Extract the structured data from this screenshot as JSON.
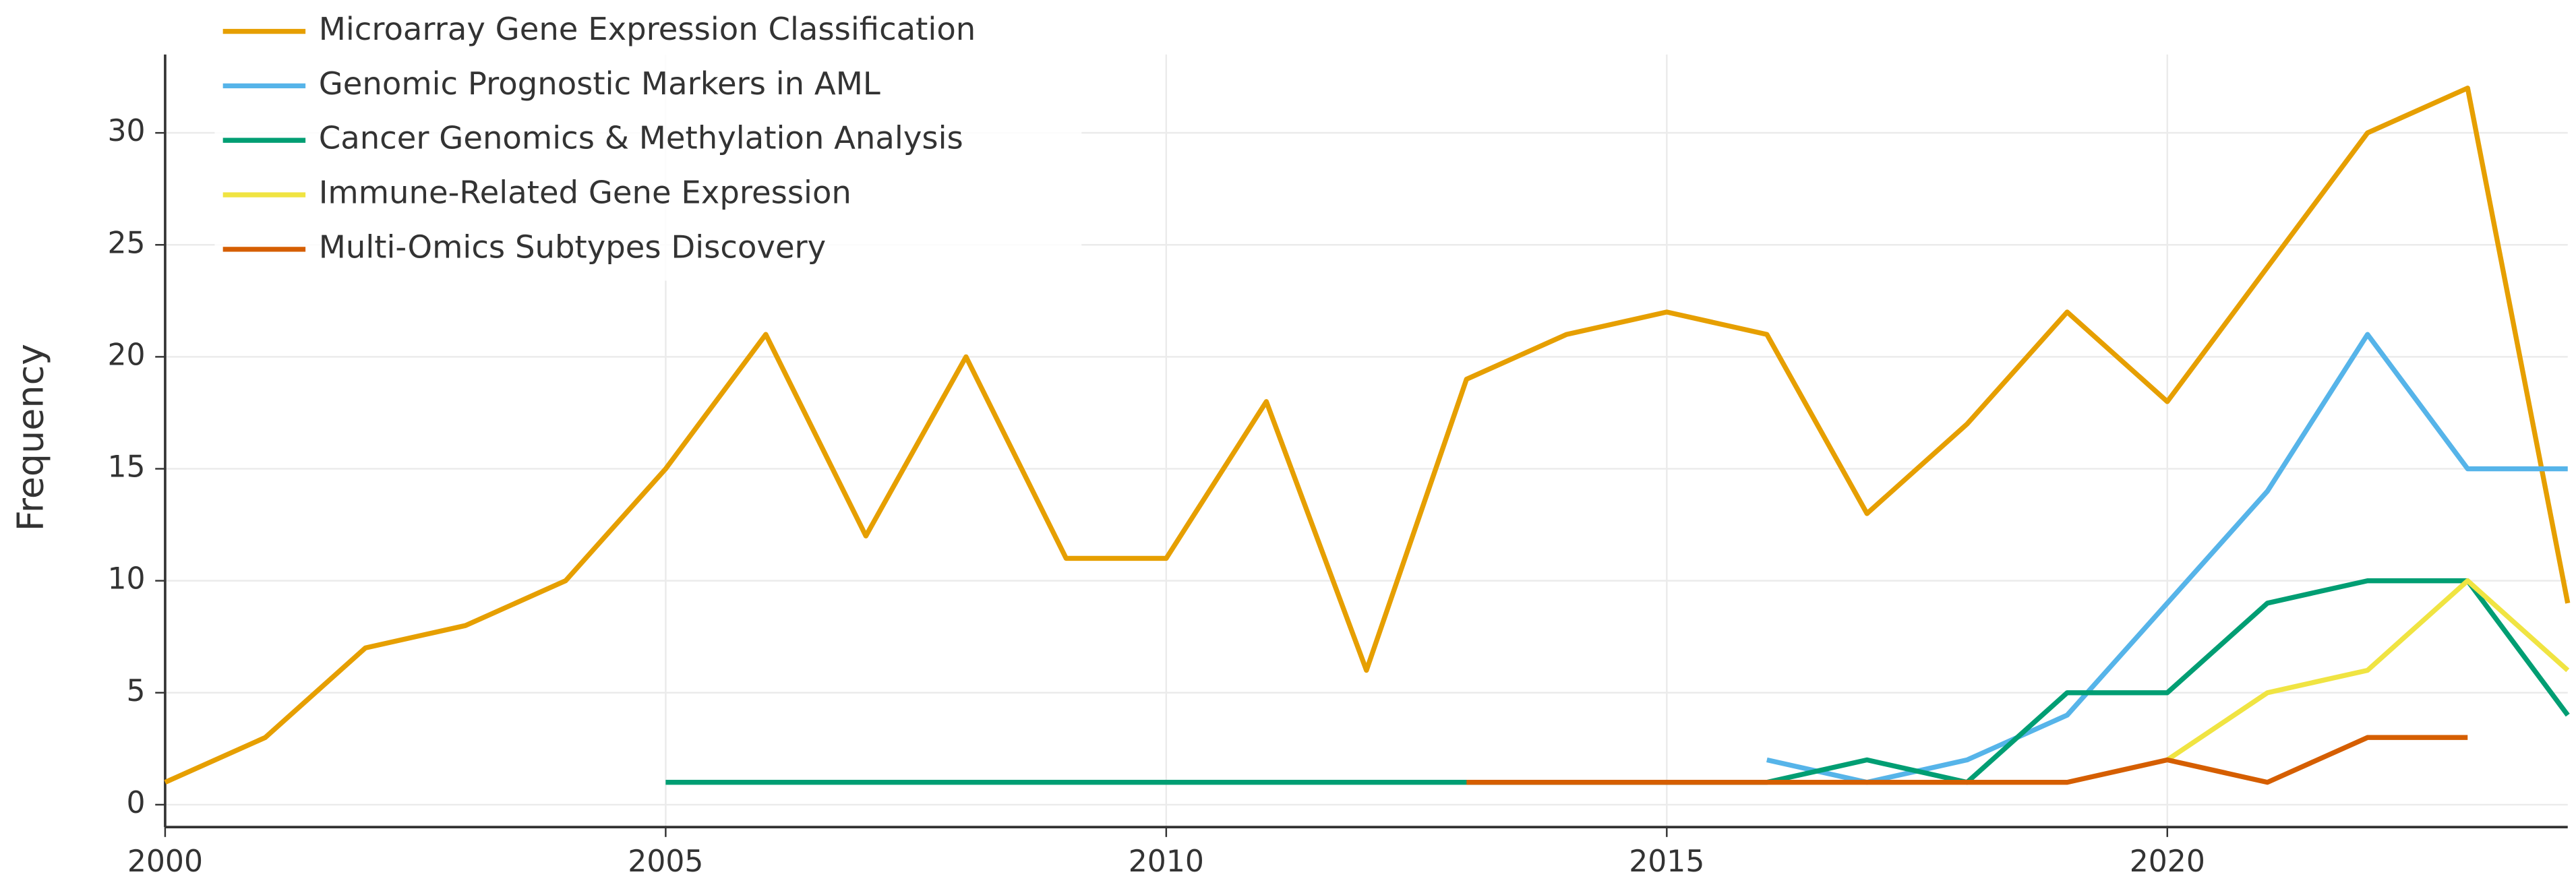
{
  "chart_data": {
    "type": "line",
    "y_label": "Frequency",
    "x": [
      2000,
      2001,
      2002,
      2003,
      2004,
      2005,
      2006,
      2007,
      2008,
      2009,
      2010,
      2011,
      2012,
      2013,
      2014,
      2015,
      2016,
      2017,
      2018,
      2019,
      2020,
      2021,
      2022,
      2023,
      2024
    ],
    "series": [
      {
        "name": "Microarray Gene Expression Classification",
        "color": "#E69F00",
        "values": [
          1,
          3,
          7,
          8,
          10,
          15,
          21,
          12,
          20,
          11,
          11,
          18,
          6,
          19,
          21,
          22,
          21,
          13,
          17,
          22,
          18,
          24,
          30,
          32,
          9
        ]
      },
      {
        "name": "Genomic Prognostic Markers in AML",
        "color": "#56B4E9",
        "values": [
          null,
          null,
          null,
          null,
          null,
          null,
          null,
          null,
          null,
          null,
          null,
          null,
          null,
          null,
          null,
          null,
          2,
          1,
          2,
          4,
          9,
          14,
          21,
          15,
          15
        ]
      },
      {
        "name": "Cancer Genomics & Methylation Analysis",
        "color": "#009E73",
        "values": [
          null,
          null,
          null,
          null,
          null,
          1,
          1,
          1,
          1,
          1,
          1,
          1,
          1,
          1,
          1,
          1,
          1,
          2,
          1,
          5,
          5,
          9,
          10,
          10,
          4
        ]
      },
      {
        "name": "Immune-Related Gene Expression",
        "color": "#F0E442",
        "values": [
          null,
          null,
          null,
          null,
          null,
          null,
          null,
          null,
          null,
          null,
          null,
          null,
          null,
          null,
          null,
          null,
          null,
          null,
          null,
          null,
          2,
          5,
          6,
          10,
          6
        ]
      },
      {
        "name": "Multi-Omics Subtypes Discovery",
        "color": "#D55E00",
        "values": [
          null,
          null,
          null,
          null,
          null,
          null,
          null,
          null,
          null,
          null,
          null,
          null,
          null,
          1,
          1,
          1,
          1,
          1,
          1,
          1,
          2,
          1,
          3,
          3,
          null
        ]
      }
    ],
    "xlim": [
      2000,
      2024
    ],
    "xticks": [
      2000,
      2005,
      2010,
      2015,
      2020
    ],
    "ylim": [
      -1,
      33.5
    ],
    "yticks": [
      0,
      5,
      10,
      15,
      20,
      25,
      30
    ],
    "grid": true,
    "legend": "top-left"
  }
}
